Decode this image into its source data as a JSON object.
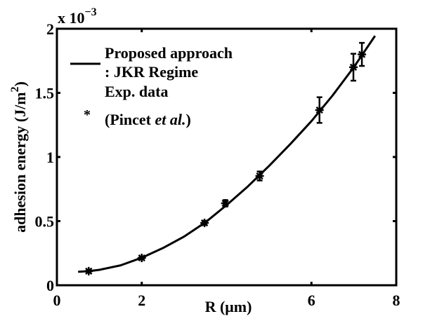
{
  "chart_data": {
    "type": "line",
    "title": "",
    "xlabel": "R (μm)",
    "ylabel": "adhesion energy (J/m²)",
    "ylabel_parts": {
      "base": "adhesion energy (J/m",
      "sup": "2",
      "close": ")"
    },
    "y_multiplier": {
      "base": "x 10",
      "exponent": "−3"
    },
    "xlim": [
      0,
      8
    ],
    "ylim": [
      0,
      2
    ],
    "y_scale_factor": 0.001,
    "x_ticks": [
      0,
      2,
      6,
      8
    ],
    "x_tick_labels": [
      "0",
      "2",
      "6",
      "8"
    ],
    "y_ticks": [
      0,
      0.5,
      1,
      1.5,
      2
    ],
    "y_tick_labels": [
      "0",
      "0.5",
      "1",
      "1.5",
      "2"
    ],
    "grid": false,
    "legend": {
      "position": "upper-left",
      "entries": [
        {
          "label_lines": [
            "Proposed approach",
            ": JKR Regime"
          ],
          "marker": "line"
        },
        {
          "label_lines": [
            "Exp. data",
            "(Pincet ",
            "et al.",
            ")"
          ],
          "marker": "asterisk"
        }
      ]
    },
    "series": [
      {
        "name": "Proposed approach : JKR Regime",
        "type": "line",
        "color": "#000000",
        "x": [
          0.5,
          0.75,
          1.0,
          1.5,
          2.0,
          2.5,
          3.0,
          3.5,
          4.0,
          4.5,
          5.0,
          5.5,
          6.0,
          6.5,
          7.0,
          7.5
        ],
        "y": [
          0.105,
          0.11,
          0.12,
          0.155,
          0.215,
          0.29,
          0.38,
          0.49,
          0.625,
          0.77,
          0.93,
          1.1,
          1.28,
          1.48,
          1.7,
          1.945
        ]
      },
      {
        "name": "Exp. data (Pincet et al.)",
        "type": "scatter",
        "marker": "asterisk",
        "color": "#000000",
        "x": [
          0.75,
          2.0,
          3.48,
          3.97,
          4.78,
          6.19,
          6.99,
          7.19
        ],
        "y": [
          0.11,
          0.213,
          0.486,
          0.639,
          0.852,
          1.366,
          1.7,
          1.8
        ],
        "y_err": [
          0.01,
          0.01,
          0.015,
          0.025,
          0.035,
          0.1,
          0.105,
          0.09
        ]
      }
    ]
  }
}
